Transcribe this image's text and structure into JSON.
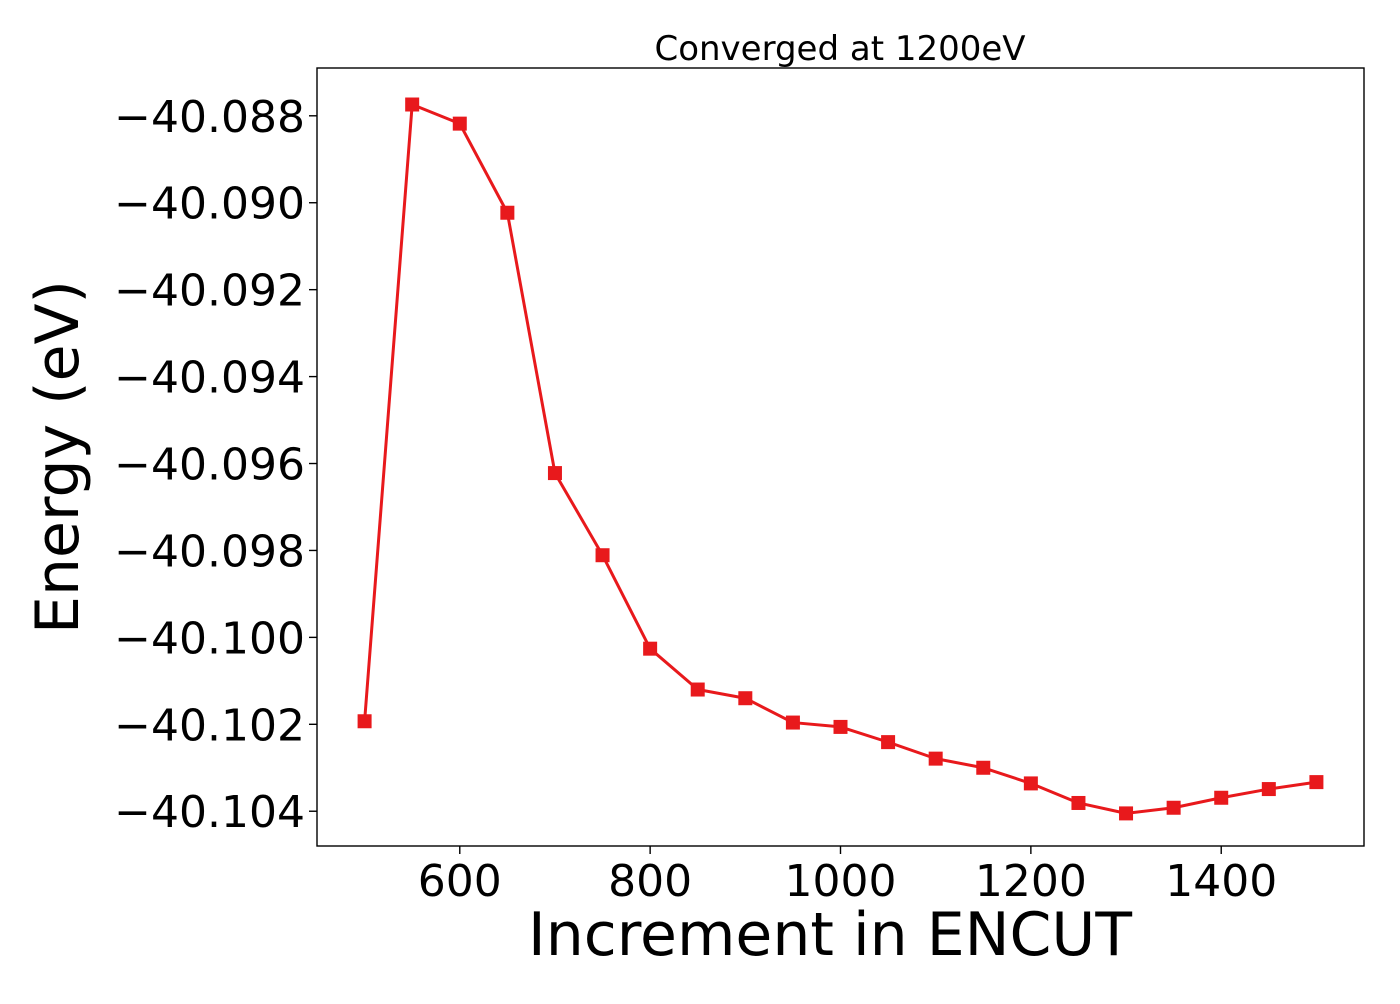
{
  "chart_data": {
    "type": "line",
    "title": "Converged at 1200eV",
    "xlabel": "Increment in ENCUT",
    "ylabel": "Energy (eV)",
    "xlim": [
      450,
      1550
    ],
    "ylim": [
      -40.1048,
      -40.0869
    ],
    "x_ticks": [
      600,
      800,
      1000,
      1200,
      1400
    ],
    "x_tick_labels": [
      "600",
      "800",
      "1000",
      "1200",
      "1400"
    ],
    "y_ticks": [
      -40.088,
      -40.09,
      -40.092,
      -40.094,
      -40.096,
      -40.098,
      -40.1,
      -40.102,
      -40.104
    ],
    "y_tick_labels": [
      "−40.088",
      "−40.090",
      "−40.092",
      "−40.094",
      "−40.096",
      "−40.098",
      "−40.100",
      "−40.102",
      "−40.104"
    ],
    "grid": false,
    "marker": "square",
    "color": "#e8191c",
    "series": [
      {
        "x": [
          500,
          550,
          600,
          650,
          700,
          750,
          800,
          850,
          900,
          950,
          1000,
          1050,
          1100,
          1150,
          1200,
          1250,
          1300,
          1350,
          1400,
          1450,
          1500
        ],
        "values": [
          -40.10193,
          -40.08774,
          -40.08818,
          -40.09023,
          -40.09622,
          -40.09811,
          -40.10026,
          -40.1012,
          -40.1014,
          -40.10196,
          -40.10206,
          -40.10241,
          -40.10279,
          -40.103,
          -40.10336,
          -40.10381,
          -40.10405,
          -40.10392,
          -40.10369,
          -40.10349,
          -40.10333
        ]
      }
    ]
  }
}
